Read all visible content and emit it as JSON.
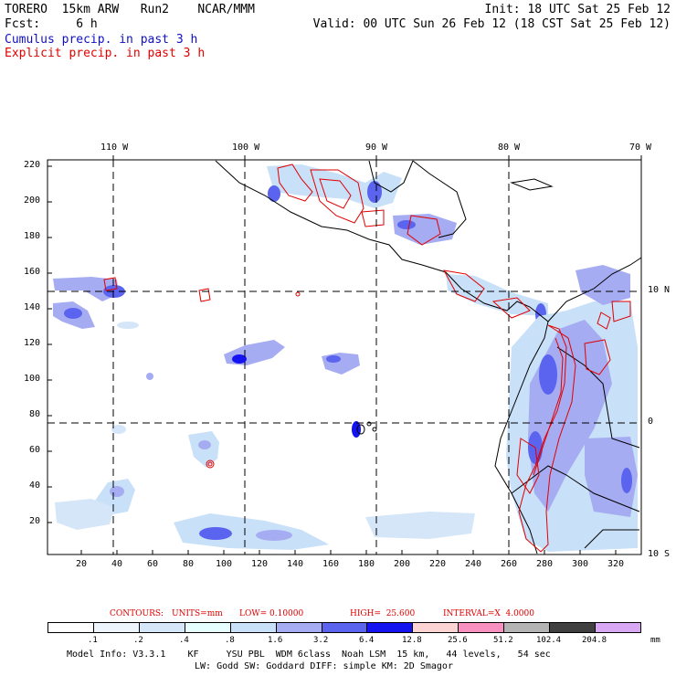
{
  "header": {
    "line1_left": "TORERO  15km ARW   Run2    NCAR/MMM",
    "line1_right": "Init: 18 UTC Sat 25 Feb 12",
    "line2_left": "Fcst:     6 h",
    "line2_right": "Valid: 00 UTC Sun 26 Feb 12 (18 CST Sat 25 Feb 12)",
    "field1": "Cumulus precip. in past 3 h",
    "field2": "Explicit precip. in past 3 h"
  },
  "axes": {
    "top_lon": [
      "110 W",
      "100 W",
      "90 W",
      "80 W",
      "70 W"
    ],
    "right_lat": [
      "10 N",
      "0",
      "10 S"
    ],
    "left_ticks": [
      "220",
      "200",
      "180",
      "160",
      "140",
      "120",
      "100",
      "80",
      "60",
      "40",
      "20"
    ],
    "bottom_ticks": [
      "20",
      "40",
      "60",
      "80",
      "100",
      "120",
      "140",
      "160",
      "180",
      "200",
      "220",
      "240",
      "260",
      "280",
      "300",
      "320"
    ]
  },
  "contours": {
    "label": "CONTOURS:",
    "units": "UNITS=mm",
    "low": "LOW= 0.10000",
    "high": "HIGH=  25.600",
    "interval": "INTERVAL=X  4.0000"
  },
  "colorbar": {
    "labels": [
      ".1",
      ".2",
      ".4",
      ".8",
      "1.6",
      "3.2",
      "6.4",
      "12.8",
      "25.6",
      "51.2",
      "102.4",
      "204.8"
    ],
    "unit": "mm",
    "colors": [
      "#ffffff",
      "#eef4fb",
      "#d4e6f8",
      "#e6ffff",
      "#c8e0f8",
      "#a6acf2",
      "#5a64ee",
      "#1414f0",
      "#fcd4d4",
      "#f890c0",
      "#b4b4b4",
      "#404040",
      "#d8a8f4"
    ]
  },
  "footer": {
    "line1": "Model Info: V3.3.1    KF     YSU PBL  WDM 6class  Noah LSM  15 km,   44 levels,   54 sec",
    "line2": "LW: Godd SW: Goddard DIFF: simple KM: 2D Smagor"
  }
}
